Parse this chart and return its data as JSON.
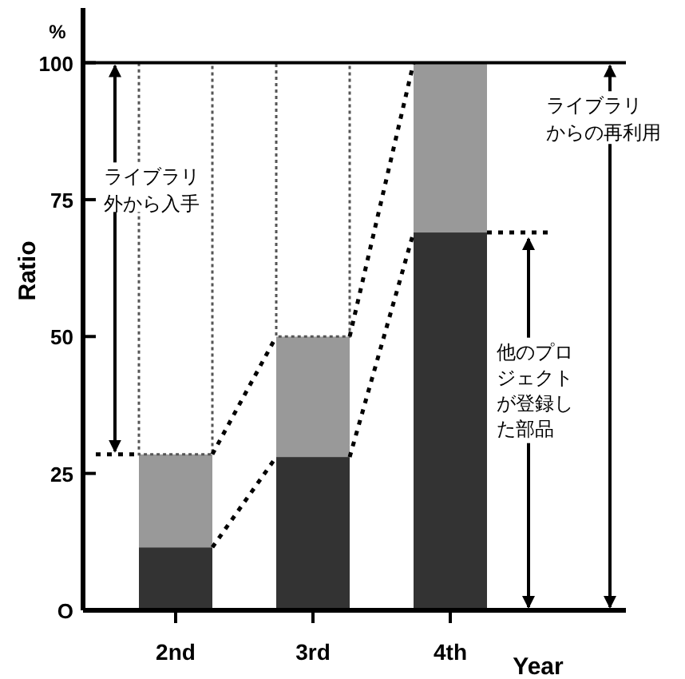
{
  "chart_data": {
    "type": "bar",
    "stacked": true,
    "xlabel": "Year",
    "ylabel": "Ratio",
    "categories": [
      "2nd",
      "3rd",
      "4th"
    ],
    "series": [
      {
        "color": "#333333",
        "values": [
          11.5,
          28,
          69
        ]
      },
      {
        "color": "#999999",
        "values": [
          17,
          22,
          31
        ]
      },
      {
        "color": "#ffffff",
        "values": [
          71.5,
          50,
          null
        ]
      }
    ],
    "ylim": [
      0,
      110
    ],
    "yticks": [
      {
        "value": 0,
        "label": "O"
      },
      25,
      50,
      75,
      100
    ],
    "ref_lines": [
      {
        "axis": "y",
        "value": 100
      }
    ],
    "annotations": [
      "%",
      "ライブラリ外から入手",
      "ライブラリからの再利用",
      "他のプロジェクトが登録した部品"
    ]
  }
}
